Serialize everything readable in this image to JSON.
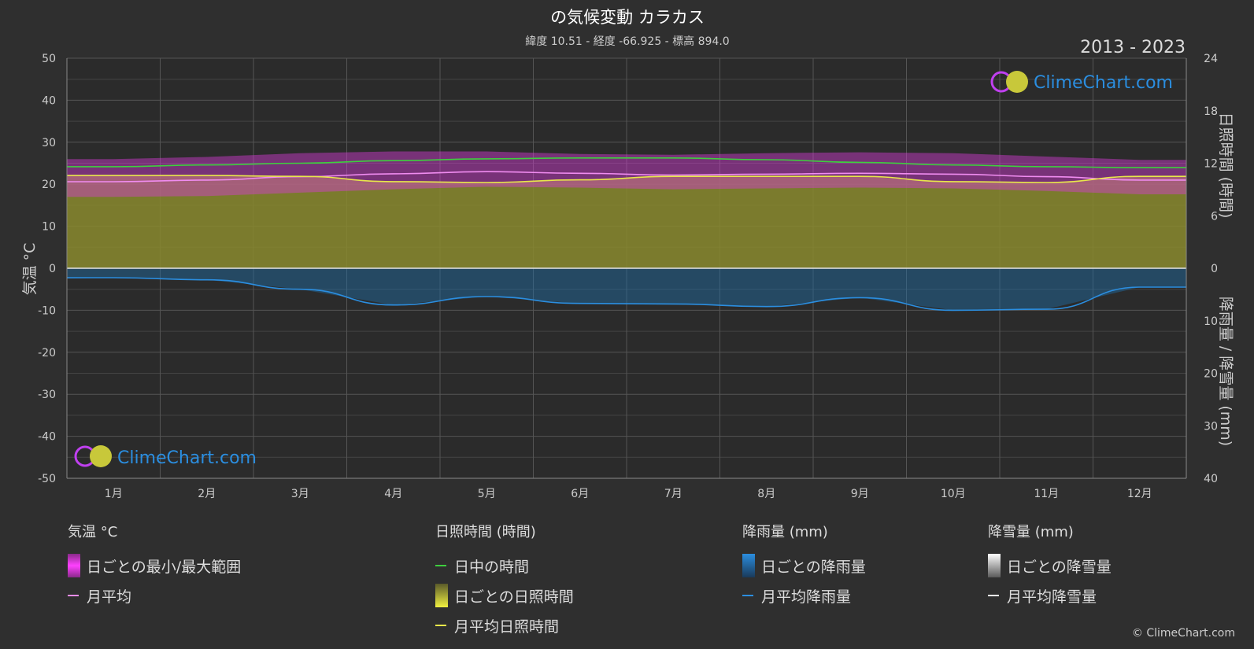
{
  "title": "の気候変動 カラカス",
  "subtitle": "緯度 10.51 - 経度 -66.925 - 標高 894.0",
  "year_range": "2013 - 2023",
  "brand": "ClimeChart.com",
  "copyright": "© ClimeChart.com",
  "colors": {
    "background": "#2f2f2f",
    "temp_range": "#d63bd6",
    "temp_mean": "#f08cf0",
    "daylight": "#3ecf3e",
    "sunshine_fill": "#8a8a2e",
    "sunshine_line": "#e8e84a",
    "rain_fill": "#1f6fa8",
    "rain_line": "#2b8ee0",
    "snow_line": "#ffffff"
  },
  "legend": {
    "temperature": {
      "title": "気温 °C",
      "items": [
        {
          "label": "日ごとの最小/最大範囲",
          "kind": "box",
          "color": "#d63bd6"
        },
        {
          "label": "月平均",
          "kind": "line",
          "color": "#f08cf0"
        }
      ]
    },
    "sunshine": {
      "title": "日照時間 (時間)",
      "items": [
        {
          "label": "日中の時間",
          "kind": "line",
          "color": "#3ecf3e"
        },
        {
          "label": "日ごとの日照時間",
          "kind": "box",
          "color": "#c8c83a"
        },
        {
          "label": "月平均日照時間",
          "kind": "line",
          "color": "#e8e84a"
        }
      ]
    },
    "rain": {
      "title": "降雨量 (mm)",
      "items": [
        {
          "label": "日ごとの降雨量",
          "kind": "box",
          "color": "#2b8ee0"
        },
        {
          "label": "月平均降雨量",
          "kind": "line",
          "color": "#2b8ee0"
        }
      ]
    },
    "snow": {
      "title": "降雪量 (mm)",
      "items": [
        {
          "label": "日ごとの降雪量",
          "kind": "box",
          "color": "#e0e0e0"
        },
        {
          "label": "月平均降雪量",
          "kind": "line",
          "color": "#ffffff"
        }
      ]
    }
  },
  "chart_data": {
    "type": "line",
    "categories": [
      "1月",
      "2月",
      "3月",
      "4月",
      "5月",
      "6月",
      "7月",
      "8月",
      "9月",
      "10月",
      "11月",
      "12月"
    ],
    "left_axis": {
      "label": "気温 °C",
      "range": [
        -50,
        50
      ],
      "ticks": [
        50,
        40,
        30,
        20,
        10,
        0,
        -10,
        -20,
        -30,
        -40,
        -50
      ]
    },
    "right_axis_sun": {
      "label": "日照時間 (時間)",
      "range": [
        0,
        24
      ],
      "ticks": [
        24,
        18,
        12,
        6,
        0
      ]
    },
    "right_axis_rain": {
      "label": "降雨量 / 降雪量 (mm)",
      "range": [
        0,
        40
      ],
      "ticks": [
        0,
        10,
        20,
        30,
        40
      ]
    },
    "grid": true,
    "series": [
      {
        "name": "日中の時間",
        "unit": "hours",
        "values": [
          11.6,
          11.8,
          12.0,
          12.3,
          12.5,
          12.6,
          12.6,
          12.4,
          12.1,
          11.8,
          11.6,
          11.5
        ]
      },
      {
        "name": "月平均日照時間",
        "unit": "hours",
        "values": [
          10.6,
          10.6,
          10.5,
          9.9,
          9.8,
          10.1,
          10.5,
          10.5,
          10.5,
          9.9,
          9.8,
          10.5
        ]
      },
      {
        "name": "月平均",
        "unit": "°C",
        "values": [
          20.6,
          21.0,
          21.8,
          22.5,
          23.0,
          22.6,
          22.2,
          22.4,
          22.6,
          22.4,
          21.8,
          21.0
        ]
      },
      {
        "name": "日ごとの最小/最大範囲",
        "unit": "°C",
        "min": [
          17.0,
          17.2,
          18.0,
          18.8,
          19.4,
          19.2,
          18.8,
          19.0,
          19.2,
          19.0,
          18.4,
          17.6
        ],
        "max": [
          26.0,
          26.5,
          27.4,
          27.8,
          27.8,
          27.2,
          27.0,
          27.4,
          27.6,
          27.4,
          26.6,
          25.8
        ]
      },
      {
        "name": "月平均降雨量",
        "unit": "mm",
        "values": [
          1.8,
          2.2,
          4.0,
          7.0,
          5.4,
          6.7,
          6.8,
          7.3,
          5.6,
          8.0,
          7.8,
          3.6
        ]
      },
      {
        "name": "月平均降雪量",
        "unit": "mm",
        "values": [
          0,
          0,
          0,
          0,
          0,
          0,
          0,
          0,
          0,
          0,
          0,
          0
        ]
      }
    ]
  }
}
